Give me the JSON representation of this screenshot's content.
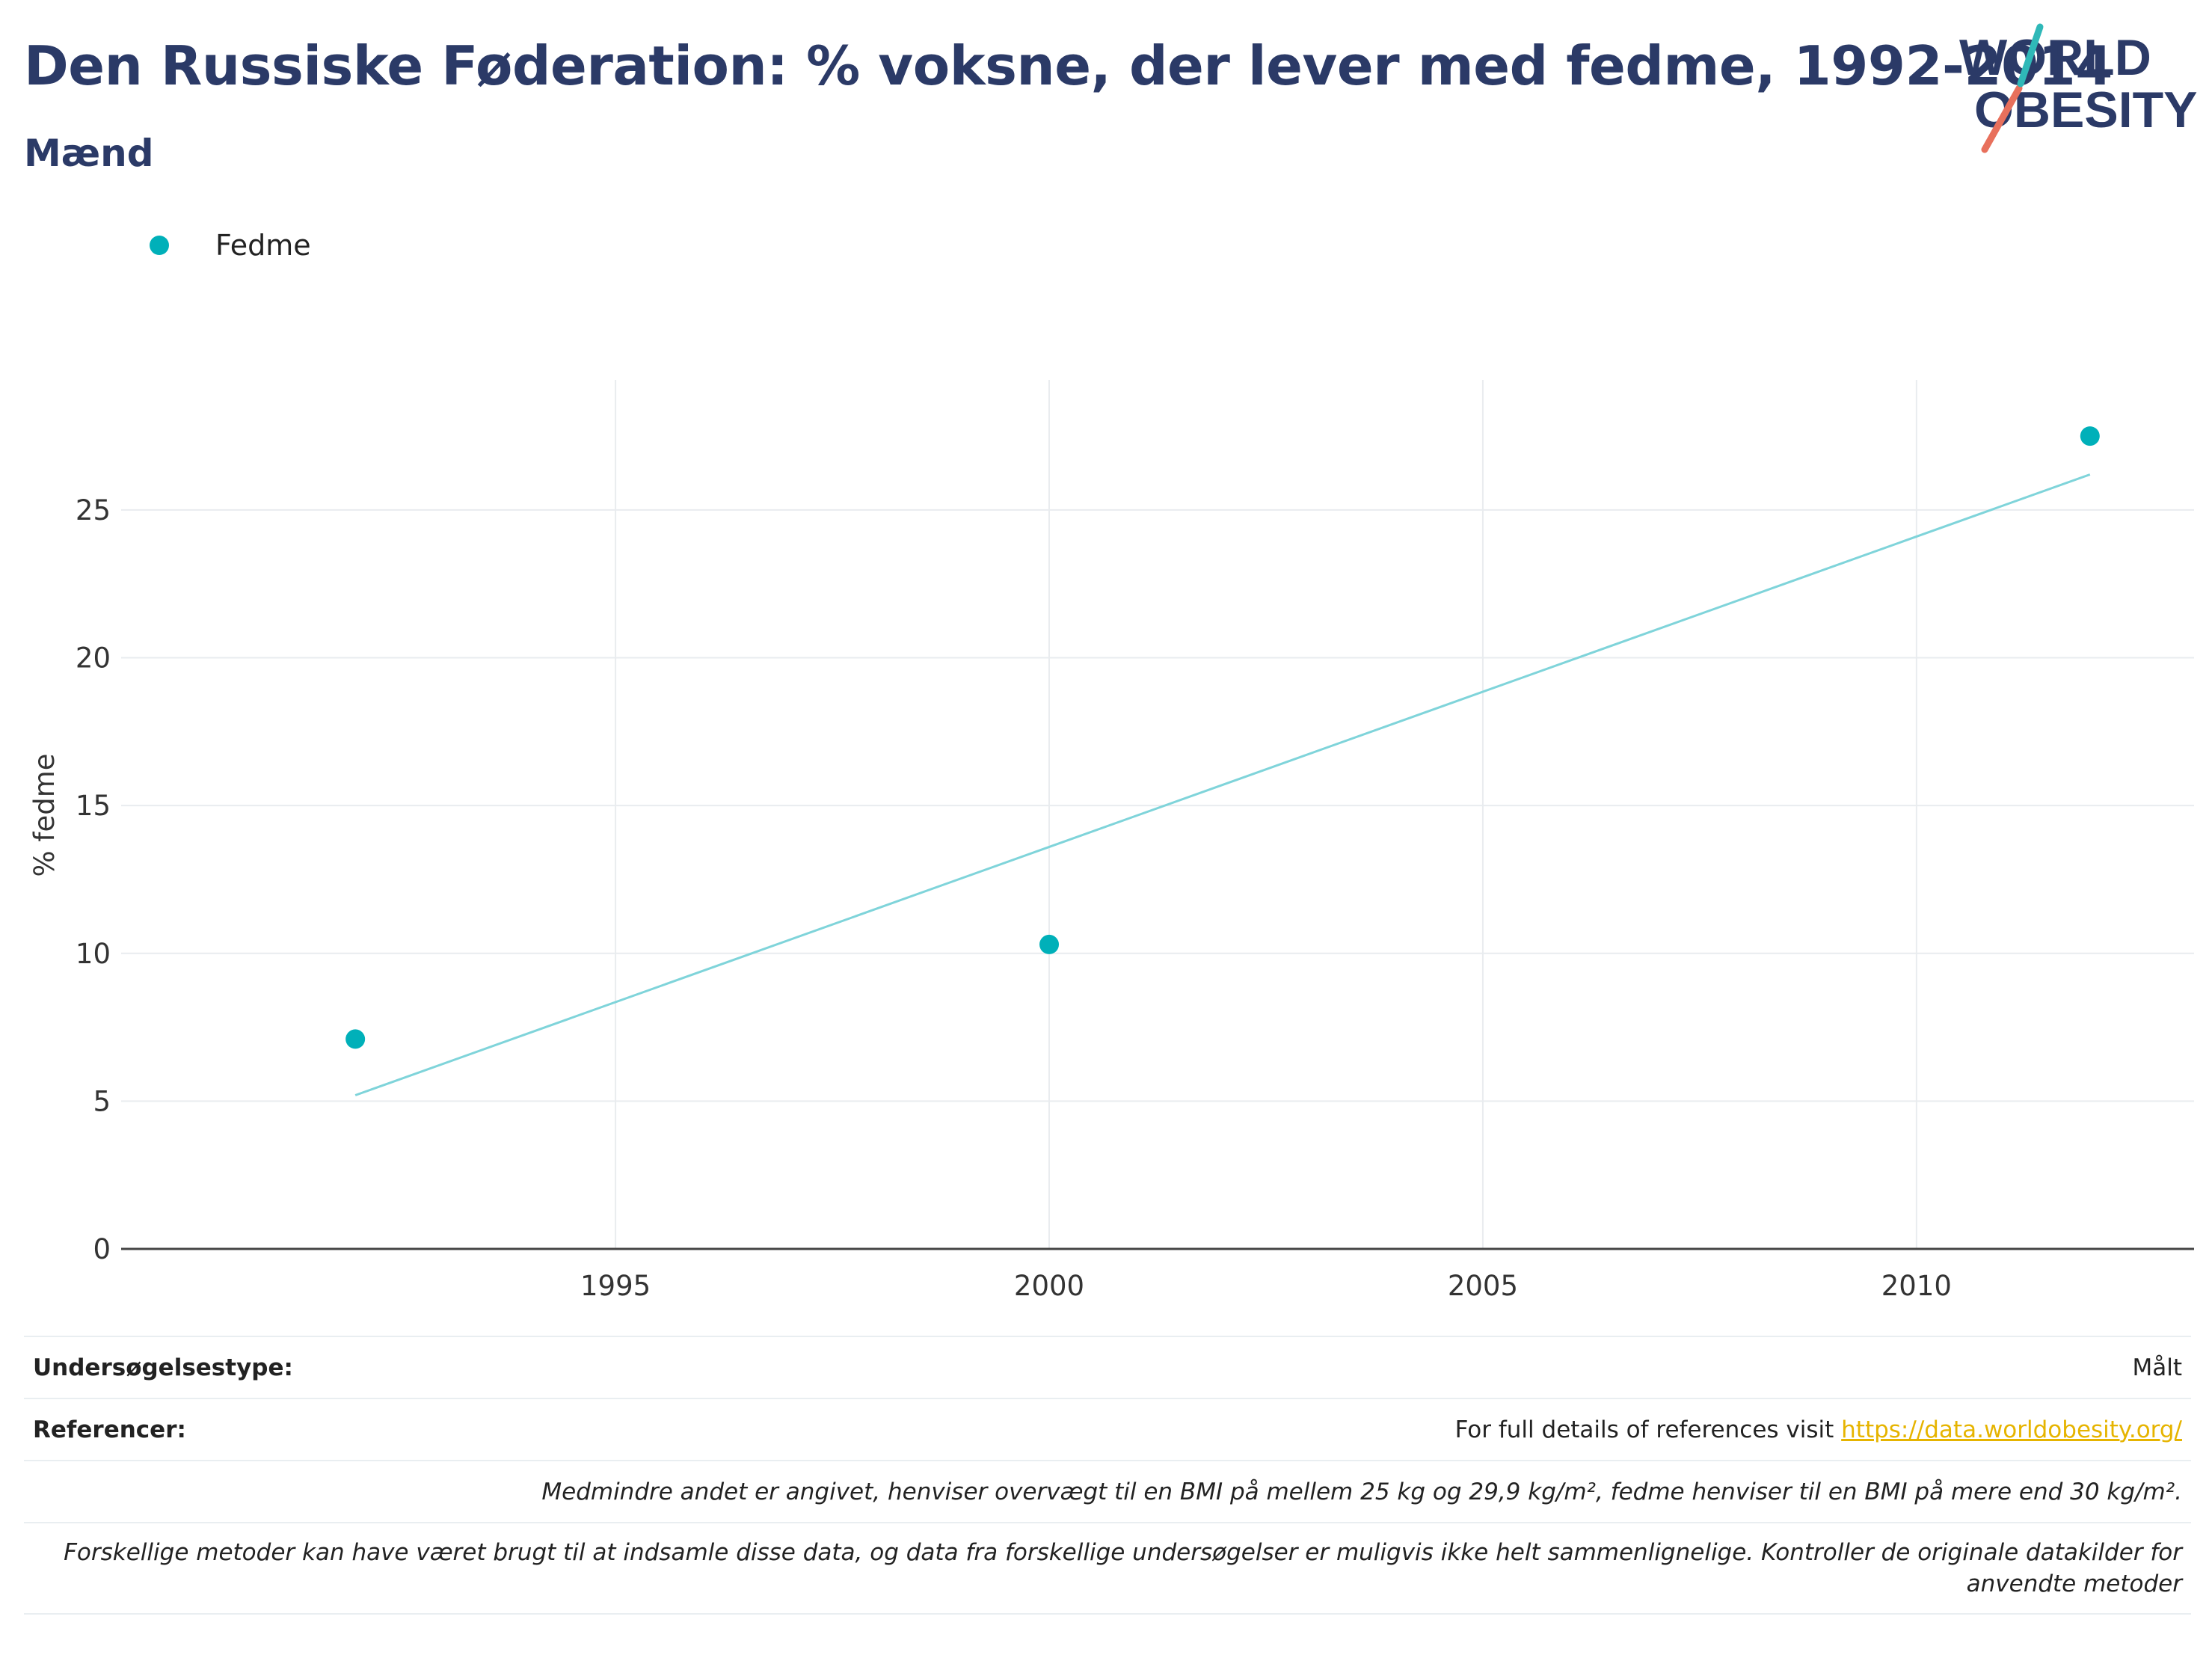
{
  "header": {
    "title": "Den Russiske Føderation: % voksne, der lever med fedme, 1992-2014",
    "subtitle": "Mænd"
  },
  "logo": {
    "line1": "WORLD",
    "line2": "OBESITY"
  },
  "colors": {
    "title": "#2b3a67",
    "point": "#00b0b9",
    "trend": "#7fd4da",
    "grid": "#e9ecef",
    "axis": "#444444",
    "link": "#e6b400"
  },
  "chart_data": {
    "type": "scatter",
    "title": "Den Russiske Føderation: % voksne, der lever med fedme, 1992-2014",
    "ylabel": "% fedme",
    "xlabel": "",
    "legend": {
      "position": "top-left",
      "entries": [
        "Fedme"
      ]
    },
    "series": [
      {
        "name": "Fedme",
        "x": [
          1992,
          2000,
          2012
        ],
        "y": [
          7.1,
          10.3,
          27.5
        ]
      }
    ],
    "trendline": {
      "x": [
        1992,
        2012
      ],
      "y": [
        5.2,
        26.2
      ]
    },
    "xticks": [
      1995,
      2000,
      2005,
      2010
    ],
    "yticks": [
      0,
      5,
      10,
      15,
      20,
      25
    ],
    "xlim": [
      1989.3,
      2013.2
    ],
    "ylim": [
      0,
      29.4
    ],
    "grid": true
  },
  "footer": {
    "survey_type_label": "Undersøgelsestype:",
    "survey_type_value": "Målt",
    "references_label": "Referencer:",
    "references_text": "For full details of references visit ",
    "references_link": "https://data.worldobesity.org/",
    "note1": "Medmindre andet er angivet, henviser overvægt til en BMI på mellem 25 kg og 29,9 kg/m², fedme henviser til en BMI på mere end 30 kg/m².",
    "note2_line1": "Forskellige metoder kan have været brugt til at indsamle disse data, og data fra forskellige undersøgelser er muligvis ikke helt sammenlignelige. Kontroller de originale datakilder for",
    "note2_line2": "anvendte metoder"
  }
}
